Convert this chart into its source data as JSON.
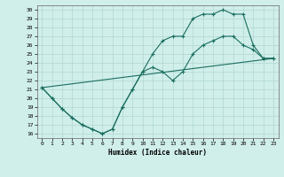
{
  "xlabel": "Humidex (Indice chaleur)",
  "background_color": "#d0eeea",
  "grid_color": "#b0d8d0",
  "line_color": "#1a6e60",
  "xlim": [
    -0.5,
    23.5
  ],
  "ylim": [
    15.5,
    30.5
  ],
  "xticks": [
    0,
    1,
    2,
    3,
    4,
    5,
    6,
    7,
    8,
    9,
    10,
    11,
    12,
    13,
    14,
    15,
    16,
    17,
    18,
    19,
    20,
    21,
    22,
    23
  ],
  "yticks": [
    16,
    17,
    18,
    19,
    20,
    21,
    22,
    23,
    24,
    25,
    26,
    27,
    28,
    29,
    30
  ],
  "line1_x": [
    0,
    1,
    2,
    3,
    4,
    5,
    6,
    7,
    8,
    9,
    10,
    11,
    12,
    13,
    14,
    15,
    16,
    17,
    18,
    19,
    20,
    21,
    22,
    23
  ],
  "line1_y": [
    21.2,
    20.0,
    18.8,
    17.8,
    17.0,
    16.5,
    16.0,
    16.5,
    19.0,
    21.0,
    23.0,
    23.5,
    23.0,
    22.0,
    23.0,
    25.0,
    26.0,
    26.5,
    27.0,
    27.0,
    26.0,
    25.5,
    24.5,
    24.5
  ],
  "line2_x": [
    0,
    1,
    2,
    3,
    4,
    5,
    6,
    7,
    8,
    9,
    10,
    11,
    12,
    13,
    14,
    15,
    16,
    17,
    18,
    19,
    20,
    21,
    22,
    23
  ],
  "line2_y": [
    21.2,
    20.0,
    18.8,
    17.8,
    17.0,
    16.5,
    16.0,
    16.5,
    19.0,
    21.0,
    23.0,
    25.0,
    26.5,
    27.0,
    27.0,
    29.0,
    29.5,
    29.5,
    30.0,
    29.5,
    29.5,
    26.0,
    24.5,
    24.5
  ],
  "line3_x": [
    0,
    23
  ],
  "line3_y": [
    21.2,
    24.5
  ]
}
